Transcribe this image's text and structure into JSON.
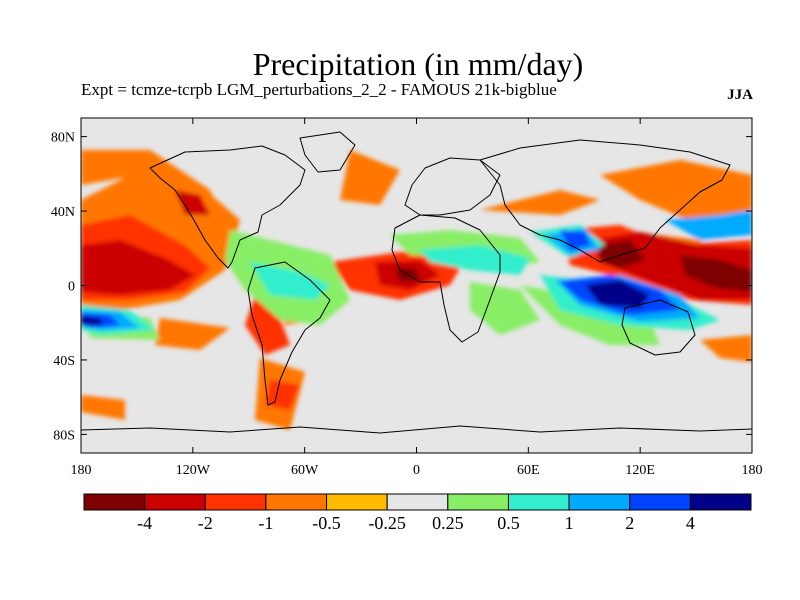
{
  "title": "Precipitation (in mm/day)",
  "subtitle_left": "Expt = tcmze-tcrpb    LGM_perturbations_2_2 - FAMOUS 21k-bigblue",
  "subtitle_right": "JJA",
  "map": {
    "projection": "cylindrical-equidistant",
    "lon_range": [
      -180,
      180
    ],
    "lat_range": [
      -90,
      90
    ],
    "background_color": "#e6e6e6",
    "lat_ticks": [
      {
        "value": 80,
        "label": "80N"
      },
      {
        "value": 40,
        "label": "40N"
      },
      {
        "value": 0,
        "label": "0"
      },
      {
        "value": -40,
        "label": "40S"
      },
      {
        "value": -80,
        "label": "80S"
      }
    ],
    "lon_ticks": [
      {
        "value": -180,
        "label": "180"
      },
      {
        "value": -120,
        "label": "120W"
      },
      {
        "value": -60,
        "label": "60W"
      },
      {
        "value": 0,
        "label": "0"
      },
      {
        "value": 60,
        "label": "60E"
      },
      {
        "value": 120,
        "label": "120E"
      },
      {
        "value": 180,
        "label": "180"
      }
    ]
  },
  "colorbar": {
    "colors": [
      "#7f0000",
      "#cc0000",
      "#ff3300",
      "#ff7700",
      "#ffbb00",
      "#e6e6e6",
      "#88ee66",
      "#33eecc",
      "#00aaff",
      "#0044ff",
      "#000088"
    ],
    "labels": [
      "-4",
      "-2",
      "-1",
      "-0.5",
      "-0.25",
      "0.25",
      "0.5",
      "1",
      "2",
      "4"
    ]
  }
}
